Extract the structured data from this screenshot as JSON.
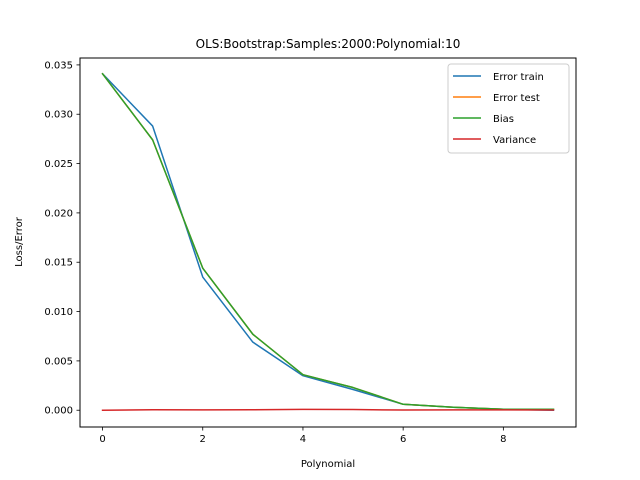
{
  "chart_data": {
    "type": "line",
    "title": "OLS:Bootstrap:Samples:2000:Polynomial:10",
    "xlabel": "Polynomial",
    "ylabel": "Loss/Error",
    "xlim": [
      -0.45,
      9.45
    ],
    "ylim": [
      -0.0017,
      0.0357
    ],
    "x": [
      0,
      1,
      2,
      3,
      4,
      5,
      6,
      7,
      8,
      9
    ],
    "x_ticks": [
      "0",
      "2",
      "4",
      "6",
      "8"
    ],
    "x_tick_values": [
      0,
      2,
      4,
      6,
      8
    ],
    "y_ticks": [
      "0.000",
      "0.005",
      "0.010",
      "0.015",
      "0.020",
      "0.025",
      "0.030",
      "0.035"
    ],
    "y_tick_values": [
      0,
      0.005,
      0.01,
      0.015,
      0.02,
      0.025,
      0.03,
      0.035
    ],
    "legend_position": "top-right",
    "grid": false,
    "series": [
      {
        "name": "Error train",
        "color": "#1f77b4",
        "values": [
          0.0341,
          0.0288,
          0.0135,
          0.0069,
          0.0035,
          0.0021,
          0.0006,
          0.0003,
          0.0001,
          0.0
        ]
      },
      {
        "name": "Error test",
        "color": "#ff7f0e",
        "values": [
          0.0341,
          0.0274,
          0.0144,
          0.0077,
          0.0036,
          0.0023,
          0.0006,
          0.0003,
          0.0001,
          0.0001
        ]
      },
      {
        "name": "Bias",
        "color": "#2ca02c",
        "values": [
          0.0341,
          0.0274,
          0.0144,
          0.0077,
          0.0036,
          0.0023,
          0.0006,
          0.0003,
          0.0001,
          0.0001
        ]
      },
      {
        "name": "Variance",
        "color": "#d62728",
        "values": [
          0.0,
          5e-05,
          3e-05,
          5e-05,
          9e-05,
          7e-05,
          2e-05,
          3e-05,
          4e-05,
          2e-05
        ]
      }
    ]
  }
}
